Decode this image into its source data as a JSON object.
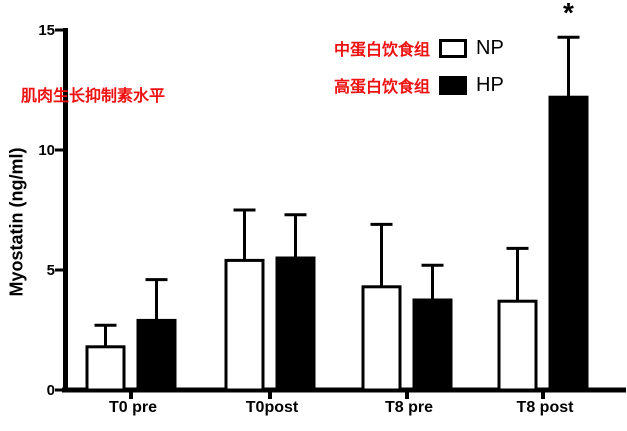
{
  "colors": {
    "annotation_red": "#ee1111",
    "axis_black": "#000000",
    "np_fill": "#ffffff",
    "hp_fill": "#000000"
  },
  "annotations": {
    "left_label_cn": "肌肉生长抑制素水平",
    "significance_symbol": "*"
  },
  "legend": {
    "rows": [
      {
        "cn": "中蛋白饮食组",
        "code": "NP",
        "swatch": "white"
      },
      {
        "cn": "高蛋白饮食组",
        "code": "HP",
        "swatch": "black"
      }
    ]
  },
  "chart_data": {
    "type": "bar",
    "title": "",
    "xlabel": "",
    "ylabel": "Myostatin (ng/ml)",
    "ylim": [
      0,
      15
    ],
    "yticks": [
      0,
      5,
      10,
      15
    ],
    "grid": false,
    "legend_position": "top-right",
    "categories": [
      "T0 pre",
      "T0post",
      "T8 pre",
      "T8 post"
    ],
    "series": [
      {
        "name": "NP",
        "label_cn": "中蛋白饮食组",
        "fill": "#ffffff",
        "values": [
          1.8,
          5.4,
          4.3,
          3.7
        ],
        "error_upper": [
          0.9,
          2.1,
          2.6,
          2.2
        ]
      },
      {
        "name": "HP",
        "label_cn": "高蛋白饮食组",
        "fill": "#000000",
        "values": [
          2.9,
          5.5,
          3.75,
          12.2
        ],
        "error_upper": [
          1.7,
          1.8,
          1.45,
          2.5
        ]
      }
    ],
    "significance": {
      "symbol": "*",
      "category": "T8 post",
      "series": "HP"
    }
  }
}
